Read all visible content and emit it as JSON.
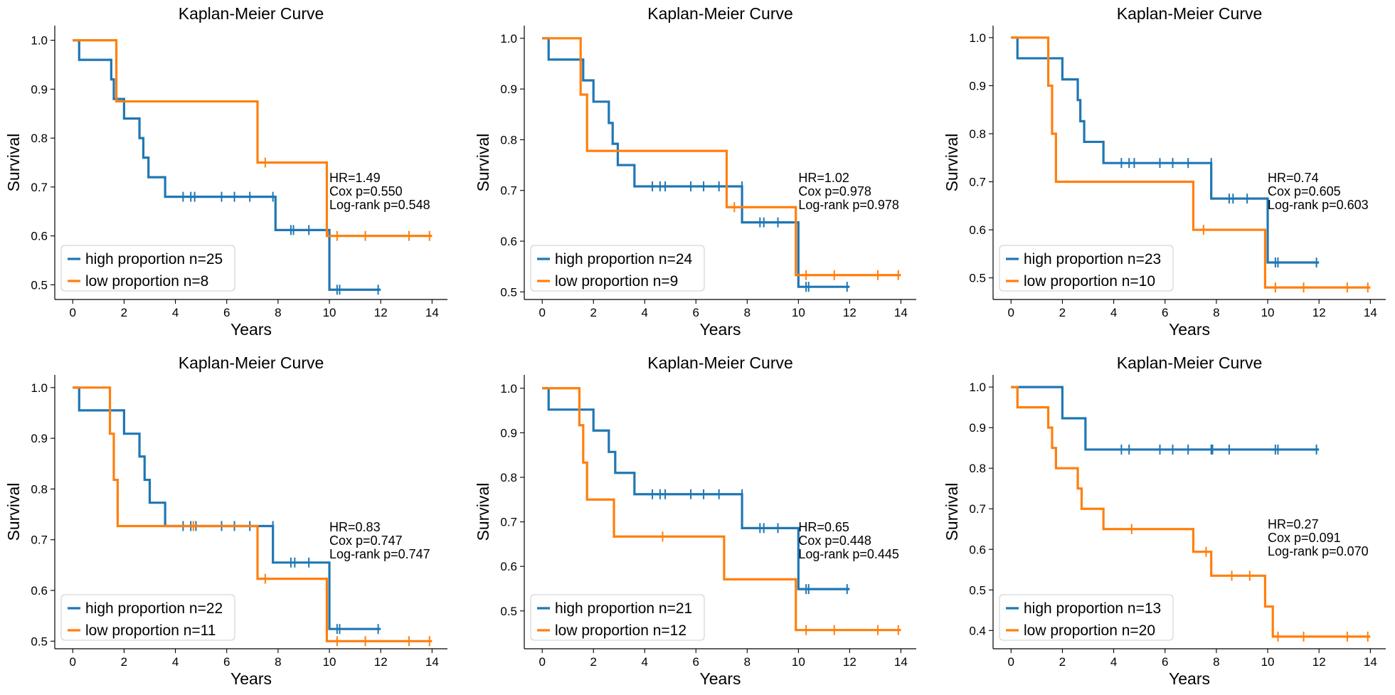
{
  "colors": {
    "high": "#1f77b4",
    "low": "#ff7f0e"
  },
  "chart_data": [
    {
      "type": "line",
      "title": "Kaplan-Meier Curve",
      "xlabel": "Years",
      "ylabel": "Survival",
      "xlim": [
        -0.7,
        14.6
      ],
      "ylim": [
        0.47,
        1.03
      ],
      "xticks": [
        "0",
        "2",
        "4",
        "6",
        "8",
        "10",
        "12",
        "14"
      ],
      "yticks": [
        "0.5",
        "0.6",
        "0.7",
        "0.8",
        "0.9",
        "1.0"
      ],
      "grid": false,
      "legend_position": "lower-left",
      "annotation": [
        "HR=1.49",
        "Cox p=0.550",
        "Log-rank p=0.548"
      ],
      "series": [
        {
          "name": "high proportion n=25",
          "color_key": "high",
          "x": [
            0,
            0.25,
            1.5,
            1.6,
            2.0,
            2.6,
            2.75,
            2.95,
            3.6,
            7.9,
            10.0,
            12.0
          ],
          "y": [
            1.0,
            0.96,
            0.92,
            0.88,
            0.84,
            0.8,
            0.76,
            0.72,
            0.68,
            0.612,
            0.49,
            0.49
          ],
          "censored": [
            [
              4.3,
              0.68
            ],
            [
              4.6,
              0.68
            ],
            [
              4.75,
              0.68
            ],
            [
              5.8,
              0.68
            ],
            [
              6.3,
              0.68
            ],
            [
              6.9,
              0.68
            ],
            [
              7.8,
              0.68
            ],
            [
              8.5,
              0.612
            ],
            [
              8.6,
              0.612
            ],
            [
              9.2,
              0.612
            ],
            [
              10.3,
              0.49
            ],
            [
              10.4,
              0.49
            ],
            [
              11.9,
              0.49
            ]
          ]
        },
        {
          "name": "low proportion n=8",
          "color_key": "low",
          "x": [
            0,
            1.7,
            7.2,
            9.9,
            14.0
          ],
          "y": [
            1.0,
            0.875,
            0.75,
            0.6,
            0.6
          ],
          "censored": [
            [
              7.5,
              0.75
            ],
            [
              10.3,
              0.6
            ],
            [
              11.4,
              0.6
            ],
            [
              13.1,
              0.6
            ],
            [
              13.9,
              0.6
            ]
          ]
        }
      ]
    },
    {
      "type": "line",
      "title": "Kaplan-Meier Curve",
      "xlabel": "Years",
      "ylabel": "Survival",
      "xlim": [
        -0.7,
        14.6
      ],
      "ylim": [
        0.485,
        1.025
      ],
      "xticks": [
        "0",
        "2",
        "4",
        "6",
        "8",
        "10",
        "12",
        "14"
      ],
      "yticks": [
        "0.5",
        "0.6",
        "0.7",
        "0.8",
        "0.9",
        "1.0"
      ],
      "grid": false,
      "legend_position": "lower-left",
      "annotation": [
        "HR=1.02",
        "Cox p=0.978",
        "Log-rank p=0.978"
      ],
      "series": [
        {
          "name": "high proportion n=24",
          "color_key": "high",
          "x": [
            0,
            0.25,
            1.6,
            2.0,
            2.6,
            2.75,
            2.95,
            3.6,
            7.8,
            10.0,
            12.0
          ],
          "y": [
            1.0,
            0.958,
            0.917,
            0.875,
            0.833,
            0.792,
            0.75,
            0.708,
            0.637,
            0.51,
            0.51
          ],
          "censored": [
            [
              4.3,
              0.708
            ],
            [
              4.6,
              0.708
            ],
            [
              4.8,
              0.708
            ],
            [
              5.8,
              0.708
            ],
            [
              6.3,
              0.708
            ],
            [
              6.9,
              0.708
            ],
            [
              7.8,
              0.708
            ],
            [
              8.5,
              0.637
            ],
            [
              8.65,
              0.637
            ],
            [
              9.2,
              0.637
            ],
            [
              10.3,
              0.51
            ],
            [
              10.4,
              0.51
            ],
            [
              11.9,
              0.51
            ]
          ]
        },
        {
          "name": "low proportion n=9",
          "color_key": "low",
          "x": [
            0,
            1.5,
            1.75,
            7.2,
            9.9,
            14.0
          ],
          "y": [
            1.0,
            0.889,
            0.778,
            0.667,
            0.533,
            0.533
          ],
          "censored": [
            [
              7.5,
              0.667
            ],
            [
              10.3,
              0.533
            ],
            [
              11.4,
              0.533
            ],
            [
              13.1,
              0.533
            ],
            [
              13.9,
              0.533
            ]
          ]
        }
      ]
    },
    {
      "type": "line",
      "title": "Kaplan-Meier Curve",
      "xlabel": "Years",
      "ylabel": "Survival",
      "xlim": [
        -0.7,
        14.6
      ],
      "ylim": [
        0.455,
        1.025
      ],
      "xticks": [
        "0",
        "2",
        "4",
        "6",
        "8",
        "10",
        "12",
        "14"
      ],
      "yticks": [
        "0.5",
        "0.6",
        "0.7",
        "0.8",
        "0.9",
        "1.0"
      ],
      "grid": false,
      "legend_position": "lower-left",
      "annotation": [
        "HR=0.74",
        "Cox p=0.605",
        "Log-rank p=0.603"
      ],
      "series": [
        {
          "name": "high proportion n=23",
          "color_key": "high",
          "x": [
            0,
            0.25,
            2.0,
            2.6,
            2.7,
            2.85,
            3.6,
            7.8,
            10.0,
            12.0
          ],
          "y": [
            1.0,
            0.957,
            0.913,
            0.87,
            0.826,
            0.783,
            0.739,
            0.665,
            0.532,
            0.532
          ],
          "censored": [
            [
              4.3,
              0.739
            ],
            [
              4.6,
              0.739
            ],
            [
              4.8,
              0.739
            ],
            [
              5.8,
              0.739
            ],
            [
              6.3,
              0.739
            ],
            [
              6.9,
              0.739
            ],
            [
              7.8,
              0.739
            ],
            [
              8.5,
              0.665
            ],
            [
              8.65,
              0.665
            ],
            [
              9.2,
              0.665
            ],
            [
              10.3,
              0.532
            ],
            [
              10.4,
              0.532
            ],
            [
              11.9,
              0.532
            ]
          ]
        },
        {
          "name": "low proportion n=10",
          "color_key": "low",
          "x": [
            0,
            1.45,
            1.6,
            1.75,
            7.1,
            9.9,
            14.0
          ],
          "y": [
            1.0,
            0.9,
            0.8,
            0.7,
            0.6,
            0.48,
            0.48
          ],
          "censored": [
            [
              7.5,
              0.6
            ],
            [
              10.3,
              0.48
            ],
            [
              11.4,
              0.48
            ],
            [
              13.1,
              0.48
            ],
            [
              13.9,
              0.48
            ]
          ]
        }
      ]
    },
    {
      "type": "line",
      "title": "Kaplan-Meier Curve",
      "xlabel": "Years",
      "ylabel": "Survival",
      "xlim": [
        -0.7,
        14.6
      ],
      "ylim": [
        0.485,
        1.025
      ],
      "xticks": [
        "0",
        "2",
        "4",
        "6",
        "8",
        "10",
        "12",
        "14"
      ],
      "yticks": [
        "0.5",
        "0.6",
        "0.7",
        "0.8",
        "0.9",
        "1.0"
      ],
      "grid": false,
      "legend_position": "lower-left",
      "annotation": [
        "HR=0.83",
        "Cox p=0.747",
        "Log-rank p=0.747"
      ],
      "series": [
        {
          "name": "high proportion n=22",
          "color_key": "high",
          "x": [
            0,
            0.25,
            2.0,
            2.6,
            2.8,
            3.0,
            3.6,
            7.8,
            10.0,
            12.0
          ],
          "y": [
            1.0,
            0.955,
            0.909,
            0.864,
            0.818,
            0.773,
            0.727,
            0.655,
            0.524,
            0.524
          ],
          "censored": [
            [
              4.3,
              0.727
            ],
            [
              4.6,
              0.727
            ],
            [
              4.8,
              0.727
            ],
            [
              5.8,
              0.727
            ],
            [
              6.3,
              0.727
            ],
            [
              6.9,
              0.727
            ],
            [
              7.8,
              0.727
            ],
            [
              8.5,
              0.655
            ],
            [
              8.65,
              0.655
            ],
            [
              9.2,
              0.655
            ],
            [
              10.3,
              0.524
            ],
            [
              10.4,
              0.524
            ],
            [
              11.9,
              0.524
            ]
          ]
        },
        {
          "name": "low proportion n=11",
          "color_key": "low",
          "x": [
            0,
            1.45,
            1.6,
            1.75,
            7.2,
            9.9,
            14.0
          ],
          "y": [
            1.0,
            0.909,
            0.818,
            0.727,
            0.623,
            0.5,
            0.5
          ],
          "censored": [
            [
              4.7,
              0.727
            ],
            [
              7.5,
              0.623
            ],
            [
              10.3,
              0.5
            ],
            [
              11.4,
              0.5
            ],
            [
              13.1,
              0.5
            ],
            [
              13.9,
              0.5
            ]
          ]
        }
      ]
    },
    {
      "type": "line",
      "title": "Kaplan-Meier Curve",
      "xlabel": "Years",
      "ylabel": "Survival",
      "xlim": [
        -0.7,
        14.6
      ],
      "ylim": [
        0.415,
        1.03
      ],
      "xticks": [
        "0",
        "2",
        "4",
        "6",
        "8",
        "10",
        "12",
        "14"
      ],
      "yticks": [
        "0.5",
        "0.6",
        "0.7",
        "0.8",
        "0.9",
        "1.0"
      ],
      "grid": false,
      "legend_position": "lower-left",
      "annotation": [
        "HR=0.65",
        "Cox p=0.448",
        "Log-rank p=0.445"
      ],
      "series": [
        {
          "name": "high proportion n=21",
          "color_key": "high",
          "x": [
            0,
            0.25,
            2.0,
            2.6,
            2.85,
            3.6,
            7.8,
            10.0,
            12.0
          ],
          "y": [
            1.0,
            0.952,
            0.905,
            0.857,
            0.81,
            0.762,
            0.686,
            0.549,
            0.549
          ],
          "censored": [
            [
              4.3,
              0.762
            ],
            [
              4.6,
              0.762
            ],
            [
              4.8,
              0.762
            ],
            [
              5.8,
              0.762
            ],
            [
              6.3,
              0.762
            ],
            [
              6.9,
              0.762
            ],
            [
              7.8,
              0.762
            ],
            [
              8.5,
              0.686
            ],
            [
              8.65,
              0.686
            ],
            [
              9.2,
              0.686
            ],
            [
              10.3,
              0.549
            ],
            [
              10.4,
              0.549
            ],
            [
              11.9,
              0.549
            ]
          ]
        },
        {
          "name": "low proportion n=12",
          "color_key": "low",
          "x": [
            0,
            1.45,
            1.6,
            1.75,
            2.8,
            7.1,
            9.9,
            14.0
          ],
          "y": [
            1.0,
            0.917,
            0.833,
            0.75,
            0.667,
            0.571,
            0.457,
            0.457
          ],
          "censored": [
            [
              4.7,
              0.667
            ],
            [
              10.3,
              0.457
            ],
            [
              11.4,
              0.457
            ],
            [
              13.1,
              0.457
            ],
            [
              13.9,
              0.457
            ]
          ]
        }
      ]
    },
    {
      "type": "line",
      "title": "Kaplan-Meier Curve",
      "xlabel": "Years",
      "ylabel": "Survival",
      "xlim": [
        -0.7,
        14.6
      ],
      "ylim": [
        0.355,
        1.03
      ],
      "xticks": [
        "0",
        "2",
        "4",
        "6",
        "8",
        "10",
        "12",
        "14"
      ],
      "yticks": [
        "0.4",
        "0.5",
        "0.6",
        "0.7",
        "0.8",
        "0.9",
        "1.0"
      ],
      "grid": false,
      "legend_position": "lower-left",
      "annotation": [
        "HR=0.27",
        "Cox p=0.091",
        "Log-rank p=0.070"
      ],
      "series": [
        {
          "name": "high proportion n=13",
          "color_key": "high",
          "x": [
            0,
            2.0,
            2.9,
            12.0
          ],
          "y": [
            1.0,
            0.923,
            0.846,
            0.846
          ],
          "censored": [
            [
              4.3,
              0.846
            ],
            [
              4.6,
              0.846
            ],
            [
              5.8,
              0.846
            ],
            [
              6.3,
              0.846
            ],
            [
              6.9,
              0.846
            ],
            [
              7.8,
              0.846
            ],
            [
              7.85,
              0.846
            ],
            [
              8.5,
              0.846
            ],
            [
              10.3,
              0.846
            ],
            [
              10.4,
              0.846
            ],
            [
              11.9,
              0.846
            ]
          ]
        },
        {
          "name": "low proportion n=20",
          "color_key": "low",
          "x": [
            0,
            0.25,
            1.45,
            1.6,
            1.75,
            2.6,
            2.75,
            3.6,
            7.1,
            7.8,
            9.9,
            10.2,
            14.0
          ],
          "y": [
            1.0,
            0.95,
            0.9,
            0.85,
            0.8,
            0.75,
            0.7,
            0.65,
            0.594,
            0.535,
            0.459,
            0.385,
            0.385
          ],
          "censored": [
            [
              4.7,
              0.65
            ],
            [
              7.6,
              0.594
            ],
            [
              8.6,
              0.535
            ],
            [
              9.3,
              0.535
            ],
            [
              10.4,
              0.385
            ],
            [
              11.4,
              0.385
            ],
            [
              13.1,
              0.385
            ],
            [
              13.9,
              0.385
            ]
          ]
        }
      ]
    }
  ]
}
